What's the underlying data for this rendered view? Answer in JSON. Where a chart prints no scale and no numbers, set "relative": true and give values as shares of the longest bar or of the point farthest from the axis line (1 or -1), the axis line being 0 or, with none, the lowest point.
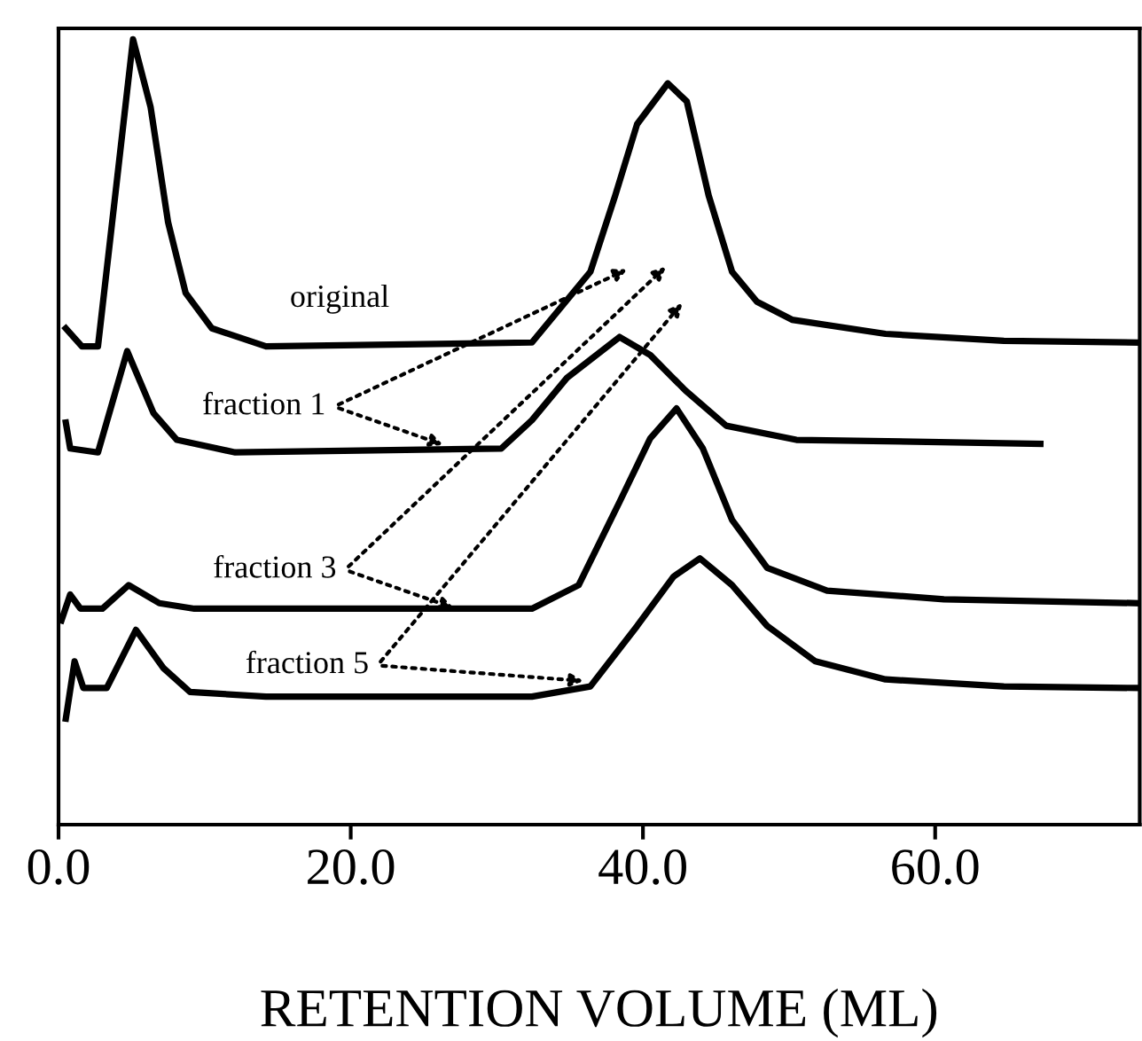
{
  "chart_data": {
    "type": "line",
    "relative": true,
    "xlabel": "RETENTION VOLUME (ML)",
    "xlim": [
      0,
      74
    ],
    "xticks": [
      {
        "value": 0,
        "label": "0.0"
      },
      {
        "value": 20,
        "label": "20.0"
      },
      {
        "value": 40,
        "label": "40.0"
      },
      {
        "value": 60,
        "label": "60.0"
      }
    ],
    "grid": false,
    "legend": false,
    "marker": "none",
    "line_style": "solid",
    "series": [
      {
        "name": "original",
        "color": "#000000",
        "x": [
          0.5,
          1.6,
          2.4,
          2.7,
          5.1,
          6.3,
          7.5,
          8.7,
          10.5,
          14.2,
          32.4,
          36.4,
          38.1,
          39.6,
          41.7,
          43.0,
          44.5,
          46.1,
          47.8,
          50.2,
          56.6,
          64.7,
          73.9
        ],
        "values": [
          0.632,
          0.609,
          0.609,
          0.609,
          1.0,
          0.914,
          0.767,
          0.677,
          0.632,
          0.609,
          0.614,
          0.704,
          0.801,
          0.892,
          0.944,
          0.921,
          0.801,
          0.704,
          0.666,
          0.643,
          0.625,
          0.616,
          0.614
        ]
      },
      {
        "name": "fraction 1",
        "color": "#000000",
        "x": [
          0.5,
          0.8,
          2.7,
          4.7,
          6.5,
          8.1,
          12.1,
          30.3,
          32.4,
          34.8,
          38.4,
          40.5,
          42.9,
          45.7,
          50.5,
          67.2
        ],
        "values": [
          0.512,
          0.479,
          0.474,
          0.603,
          0.524,
          0.49,
          0.474,
          0.479,
          0.515,
          0.569,
          0.621,
          0.598,
          0.553,
          0.508,
          0.49,
          0.485
        ]
      },
      {
        "name": "fraction 3",
        "color": "#000000",
        "x": [
          0.2,
          0.8,
          1.5,
          3.0,
          4.8,
          6.9,
          9.3,
          32.4,
          35.6,
          38.4,
          40.5,
          42.3,
          44.1,
          46.1,
          48.5,
          52.6,
          60.6,
          73.9
        ],
        "values": [
          0.26,
          0.293,
          0.275,
          0.275,
          0.305,
          0.282,
          0.275,
          0.275,
          0.305,
          0.411,
          0.492,
          0.53,
          0.479,
          0.388,
          0.327,
          0.298,
          0.287,
          0.282
        ]
      },
      {
        "name": "fraction 5",
        "color": "#000000",
        "x": [
          0.5,
          1.1,
          1.7,
          3.3,
          5.3,
          7.2,
          9.0,
          14.2,
          32.4,
          36.4,
          39.6,
          42.1,
          43.9,
          46.1,
          48.5,
          51.8,
          56.6,
          64.7,
          73.9
        ],
        "values": [
          0.135,
          0.208,
          0.174,
          0.174,
          0.248,
          0.199,
          0.169,
          0.163,
          0.163,
          0.176,
          0.253,
          0.316,
          0.339,
          0.305,
          0.253,
          0.208,
          0.185,
          0.176,
          0.174
        ]
      }
    ]
  }
}
